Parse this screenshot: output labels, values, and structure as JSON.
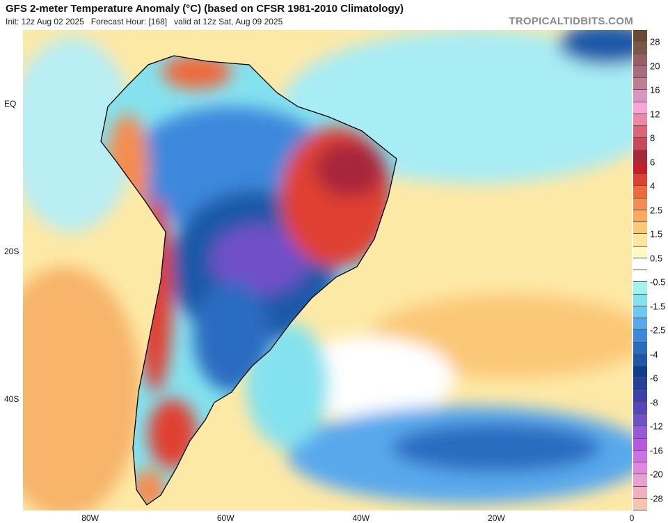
{
  "header": {
    "title": "GFS 2-meter Temperature Anomaly (°C) (based on CFSR 1981-2010 Climatology)",
    "subtitle": "Init: 12z Aug 02 2025   Forecast Hour: [168]   valid at 12z Sat, Aug 09 2025",
    "watermark": "TROPICALTIDBITS.COM"
  },
  "colorbar": {
    "labels": [
      "28",
      "20",
      "16",
      "12",
      "8",
      "6",
      "4",
      "2.5",
      "1.5",
      "0.5",
      "-0.5",
      "-1.5",
      "-2.5",
      "-4",
      "-6",
      "-8",
      "-12",
      "-16",
      "-20",
      "-28"
    ],
    "colors": [
      "#6b4a34",
      "#7e5549",
      "#946066",
      "#a86c7d",
      "#c07d97",
      "#d896bf",
      "#f7a6dc",
      "#ee88a8",
      "#de6378",
      "#c9485a",
      "#a8283a",
      "#c81e2a",
      "#e04030",
      "#ee6a3c",
      "#f58c50",
      "#f8aa60",
      "#fbc878",
      "#fde69a",
      "#fff8c0",
      "#ffffff",
      "#ffffff",
      "#a0f4ee",
      "#84e2ee",
      "#70c8f0",
      "#58a8ec",
      "#3c88dc",
      "#2a6cc0",
      "#1e58a8",
      "#0e3e8c",
      "#263e9c",
      "#3c40aa",
      "#5448b8",
      "#7050c8",
      "#9858d8",
      "#b858e0",
      "#d070e8",
      "#e088e0",
      "#e8a0d0",
      "#f0b0c0",
      "#f8c4b0"
    ]
  },
  "axes": {
    "lon_ticks": [
      {
        "label": "80W",
        "lon": -80
      },
      {
        "label": "60W",
        "lon": -60
      },
      {
        "label": "40W",
        "lon": -40
      },
      {
        "label": "20W",
        "lon": -20
      },
      {
        "label": "0",
        "lon": 0
      }
    ],
    "lat_ticks": [
      {
        "label": "EQ",
        "lat": 0
      },
      {
        "label": "20S",
        "lat": -20
      },
      {
        "label": "40S",
        "lat": -40
      }
    ]
  }
}
